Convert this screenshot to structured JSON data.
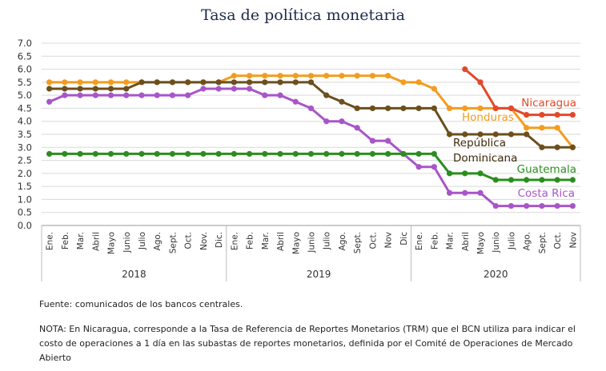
{
  "chart_data": {
    "type": "line",
    "title": "Tasa de política monetaria",
    "ylim": [
      0,
      7
    ],
    "yticks": [
      "0.0",
      "0.5",
      "1.0",
      "1.5",
      "2.0",
      "2.5",
      "3.0",
      "3.5",
      "4.0",
      "4.5",
      "5.0",
      "5.5",
      "6.0",
      "6.5",
      "7.0"
    ],
    "categories": [
      "Ene.",
      "Feb.",
      "Mar.",
      "Abril",
      "Mayo",
      "Junio",
      "Julio",
      "Ago.",
      "Sept.",
      "Oct.",
      "Nov.",
      "Dic.",
      "Ene.",
      "Feb.",
      "Mar.",
      "Abril",
      "Mayo",
      "Junio",
      "Julio",
      "Ago.",
      "Sept.",
      "Oct.",
      "Nov",
      "Dic",
      "Ene.",
      "Feb.",
      "Mar.",
      "Abril",
      "Mayo",
      "Junio",
      "Julio",
      "Ago.",
      "Sept.",
      "Oct.",
      "Nov"
    ],
    "years": [
      "2018",
      "2019",
      "2020"
    ],
    "grid": "horizontal",
    "series": [
      {
        "name": "Honduras",
        "color": "#f39c1f",
        "label_lines": [
          "Honduras"
        ],
        "values": [
          5.5,
          5.5,
          5.5,
          5.5,
          5.5,
          5.5,
          5.5,
          5.5,
          5.5,
          5.5,
          5.5,
          5.5,
          5.75,
          5.75,
          5.75,
          5.75,
          5.75,
          5.75,
          5.75,
          5.75,
          5.75,
          5.75,
          5.75,
          5.5,
          5.5,
          5.25,
          4.5,
          4.5,
          4.5,
          4.5,
          4.5,
          3.75,
          3.75,
          3.75,
          3.0
        ]
      },
      {
        "name": "República Dominicana",
        "color": "#6b4f1d",
        "label_lines": [
          "República",
          "Dominicana"
        ],
        "values": [
          5.25,
          5.25,
          5.25,
          5.25,
          5.25,
          5.25,
          5.5,
          5.5,
          5.5,
          5.5,
          5.5,
          5.5,
          5.5,
          5.5,
          5.5,
          5.5,
          5.5,
          5.5,
          5.0,
          4.75,
          4.5,
          4.5,
          4.5,
          4.5,
          4.5,
          4.5,
          3.5,
          3.5,
          3.5,
          3.5,
          3.5,
          3.5,
          3.0,
          3.0,
          3.0
        ]
      },
      {
        "name": "Costa Rica",
        "color": "#a855c9",
        "label_lines": [
          "Costa Rica"
        ],
        "values": [
          4.75,
          5.0,
          5.0,
          5.0,
          5.0,
          5.0,
          5.0,
          5.0,
          5.0,
          5.0,
          5.25,
          5.25,
          5.25,
          5.25,
          5.0,
          5.0,
          4.75,
          4.5,
          4.0,
          4.0,
          3.75,
          3.25,
          3.25,
          2.75,
          2.25,
          2.25,
          1.25,
          1.25,
          1.25,
          0.75,
          0.75,
          0.75,
          0.75,
          0.75,
          0.75
        ]
      },
      {
        "name": "Guatemala",
        "color": "#2a8e1e",
        "label_lines": [
          "Guatemala"
        ],
        "values": [
          2.75,
          2.75,
          2.75,
          2.75,
          2.75,
          2.75,
          2.75,
          2.75,
          2.75,
          2.75,
          2.75,
          2.75,
          2.75,
          2.75,
          2.75,
          2.75,
          2.75,
          2.75,
          2.75,
          2.75,
          2.75,
          2.75,
          2.75,
          2.75,
          2.75,
          2.75,
          2.0,
          2.0,
          2.0,
          1.75,
          1.75,
          1.75,
          1.75,
          1.75,
          1.75
        ]
      },
      {
        "name": "Nicaragua",
        "color": "#e2492a",
        "label_lines": [
          "Nicaragua"
        ],
        "values": [
          null,
          null,
          null,
          null,
          null,
          null,
          null,
          null,
          null,
          null,
          null,
          null,
          null,
          null,
          null,
          null,
          null,
          null,
          null,
          null,
          null,
          null,
          null,
          null,
          null,
          null,
          null,
          6.0,
          5.5,
          4.5,
          4.5,
          4.25,
          4.25,
          4.25,
          4.25
        ]
      }
    ]
  },
  "source_note": "Fuente: comunicados de los bancos centrales.",
  "footnote": "NOTA: En Nicaragua, corresponde a la Tasa de Referencia de Reportes Monetarios (TRM) que el BCN utiliza para indicar el costo de operaciones a 1 día en las subastas de reportes monetarios, definida por el Comité de Operaciones de Mercado Abierto"
}
